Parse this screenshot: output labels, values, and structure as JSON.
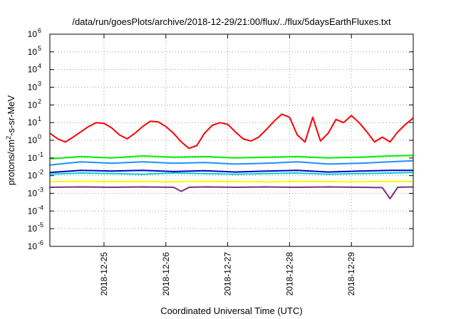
{
  "chart_data": {
    "type": "line",
    "title": "/data/run/goesPlots/archive/2018-12-29/21:00/flux/../flux/5daysEarthFluxes.txt",
    "xlabel": "Coordinated Universal Time (UTC)",
    "ylabel": "protons/cm²-s-sr-MeV",
    "ylabel_parts": {
      "main": "protons/cm",
      "sup": "2",
      "rest": "-s-sr-MeV"
    },
    "log_scale_y": true,
    "ylim": [
      1e-06,
      1000000
    ],
    "xlim": [
      "2018-12-24T03:00",
      "2018-12-30T00:00"
    ],
    "grid": true,
    "legend": "none",
    "y_ticks": [
      {
        "base": "10",
        "exp": "-6",
        "value": 1e-06
      },
      {
        "base": "10",
        "exp": "-5",
        "value": 1e-05
      },
      {
        "base": "10",
        "exp": "-4",
        "value": 0.0001
      },
      {
        "base": "10",
        "exp": "-3",
        "value": 0.001
      },
      {
        "base": "10",
        "exp": "-2",
        "value": 0.01
      },
      {
        "base": "10",
        "exp": "-1",
        "value": 0.1
      },
      {
        "base": "10",
        "exp": "0",
        "value": 1
      },
      {
        "base": "10",
        "exp": "1",
        "value": 10
      },
      {
        "base": "10",
        "exp": "2",
        "value": 100
      },
      {
        "base": "10",
        "exp": "3",
        "value": 1000
      },
      {
        "base": "10",
        "exp": "4",
        "value": 10000
      },
      {
        "base": "10",
        "exp": "5",
        "value": 100000
      },
      {
        "base": "10",
        "exp": "6",
        "value": 1000000
      }
    ],
    "x_ticks": [
      {
        "label": "2018-12-25",
        "x": "2018-12-25T00:00"
      },
      {
        "label": "2018-12-26",
        "x": "2018-12-26T00:00"
      },
      {
        "label": "2018-12-27",
        "x": "2018-12-27T00:00"
      },
      {
        "label": "2018-12-28",
        "x": "2018-12-28T00:00"
      },
      {
        "label": "2018-12-29",
        "x": "2018-12-29T00:00"
      }
    ],
    "series": [
      {
        "color": "#ff0000",
        "x": [
          "2018-12-24T03:00",
          "2018-12-24T06:00",
          "2018-12-24T09:00",
          "2018-12-24T12:00",
          "2018-12-24T15:00",
          "2018-12-24T18:00",
          "2018-12-24T21:00",
          "2018-12-25T00:00",
          "2018-12-25T03:00",
          "2018-12-25T06:00",
          "2018-12-25T09:00",
          "2018-12-25T12:00",
          "2018-12-25T15:00",
          "2018-12-25T18:00",
          "2018-12-25T21:00",
          "2018-12-26T00:00",
          "2018-12-26T03:00",
          "2018-12-26T06:00",
          "2018-12-26T09:00",
          "2018-12-26T12:00",
          "2018-12-26T15:00",
          "2018-12-26T18:00",
          "2018-12-26T21:00",
          "2018-12-27T00:00",
          "2018-12-27T03:00",
          "2018-12-27T06:00",
          "2018-12-27T09:00",
          "2018-12-27T12:00",
          "2018-12-27T15:00",
          "2018-12-27T18:00",
          "2018-12-27T21:00",
          "2018-12-28T00:00",
          "2018-12-28T03:00",
          "2018-12-28T06:00",
          "2018-12-28T09:00",
          "2018-12-28T12:00",
          "2018-12-28T15:00",
          "2018-12-28T18:00",
          "2018-12-28T21:00",
          "2018-12-29T00:00",
          "2018-12-29T03:00",
          "2018-12-29T06:00",
          "2018-12-29T09:00",
          "2018-12-29T12:00",
          "2018-12-29T15:00",
          "2018-12-29T18:00",
          "2018-12-29T21:00",
          "2018-12-30T00:00"
        ],
        "values": [
          2.5,
          1.2,
          0.8,
          1.5,
          3,
          6,
          10,
          9,
          5,
          2,
          1.2,
          2.5,
          6,
          12,
          11,
          6,
          2.5,
          0.8,
          0.35,
          0.5,
          2.5,
          7,
          10,
          8,
          3,
          1.2,
          0.9,
          1.5,
          4,
          12,
          30,
          20,
          2,
          0.8,
          20,
          0.9,
          2.5,
          15,
          10,
          25,
          10,
          3,
          0.8,
          1.5,
          0.8,
          3,
          8,
          18
        ]
      },
      {
        "color": "#00ee00",
        "x": [
          "2018-12-24T03:00",
          "2018-12-24T15:00",
          "2018-12-25T03:00",
          "2018-12-25T15:00",
          "2018-12-26T03:00",
          "2018-12-26T15:00",
          "2018-12-27T03:00",
          "2018-12-27T15:00",
          "2018-12-28T03:00",
          "2018-12-28T15:00",
          "2018-12-29T03:00",
          "2018-12-29T15:00",
          "2018-12-30T00:00"
        ],
        "values": [
          0.09,
          0.12,
          0.1,
          0.13,
          0.11,
          0.12,
          0.1,
          0.11,
          0.12,
          0.1,
          0.11,
          0.13,
          0.14
        ]
      },
      {
        "color": "#1e90ff",
        "x": [
          "2018-12-24T03:00",
          "2018-12-24T15:00",
          "2018-12-25T03:00",
          "2018-12-25T15:00",
          "2018-12-26T03:00",
          "2018-12-26T15:00",
          "2018-12-27T03:00",
          "2018-12-27T15:00",
          "2018-12-28T03:00",
          "2018-12-28T15:00",
          "2018-12-29T03:00",
          "2018-12-29T15:00",
          "2018-12-30T00:00"
        ],
        "values": [
          0.04,
          0.06,
          0.05,
          0.06,
          0.05,
          0.055,
          0.045,
          0.05,
          0.06,
          0.045,
          0.05,
          0.06,
          0.07
        ]
      },
      {
        "color": "#00ced1",
        "x": [
          "2018-12-24T03:00",
          "2018-12-24T15:00",
          "2018-12-25T03:00",
          "2018-12-25T15:00",
          "2018-12-26T03:00",
          "2018-12-26T15:00",
          "2018-12-27T03:00",
          "2018-12-27T15:00",
          "2018-12-28T03:00",
          "2018-12-28T15:00",
          "2018-12-29T03:00",
          "2018-12-29T15:00",
          "2018-12-30T00:00"
        ],
        "values": [
          0.012,
          0.014,
          0.013,
          0.012,
          0.014,
          0.013,
          0.012,
          0.013,
          0.014,
          0.012,
          0.013,
          0.014,
          0.015
        ]
      },
      {
        "color": "#0000cd",
        "x": [
          "2018-12-24T03:00",
          "2018-12-24T15:00",
          "2018-12-25T03:00",
          "2018-12-25T15:00",
          "2018-12-26T03:00",
          "2018-12-26T15:00",
          "2018-12-27T03:00",
          "2018-12-27T15:00",
          "2018-12-28T03:00",
          "2018-12-28T15:00",
          "2018-12-29T03:00",
          "2018-12-29T15:00",
          "2018-12-30T00:00"
        ],
        "values": [
          0.015,
          0.02,
          0.018,
          0.02,
          0.017,
          0.019,
          0.016,
          0.018,
          0.02,
          0.016,
          0.018,
          0.02,
          0.02
        ]
      },
      {
        "color": "#ffff00",
        "x": [
          "2018-12-24T03:00",
          "2018-12-24T15:00",
          "2018-12-25T03:00",
          "2018-12-25T15:00",
          "2018-12-26T03:00",
          "2018-12-26T15:00",
          "2018-12-27T03:00",
          "2018-12-27T15:00",
          "2018-12-28T03:00",
          "2018-12-28T15:00",
          "2018-12-29T03:00",
          "2018-12-29T15:00",
          "2018-12-30T00:00"
        ],
        "values": [
          0.0045,
          0.0048,
          0.0046,
          0.0047,
          0.0045,
          0.0047,
          0.0046,
          0.0045,
          0.0047,
          0.0046,
          0.0045,
          0.0047,
          0.0046
        ]
      },
      {
        "color": "#7f2f7f",
        "x": [
          "2018-12-24T03:00",
          "2018-12-24T15:00",
          "2018-12-25T03:00",
          "2018-12-25T15:00",
          "2018-12-26T03:00",
          "2018-12-26T06:00",
          "2018-12-26T09:00",
          "2018-12-26T15:00",
          "2018-12-27T03:00",
          "2018-12-27T15:00",
          "2018-12-28T03:00",
          "2018-12-28T15:00",
          "2018-12-29T03:00",
          "2018-12-29T12:00",
          "2018-12-29T15:00",
          "2018-12-29T18:00",
          "2018-12-30T00:00"
        ],
        "values": [
          0.0022,
          0.0023,
          0.0022,
          0.0023,
          0.0022,
          0.0013,
          0.0022,
          0.0023,
          0.0022,
          0.0023,
          0.0022,
          0.0023,
          0.0022,
          0.0021,
          0.0005,
          0.0022,
          0.0023
        ]
      }
    ]
  }
}
